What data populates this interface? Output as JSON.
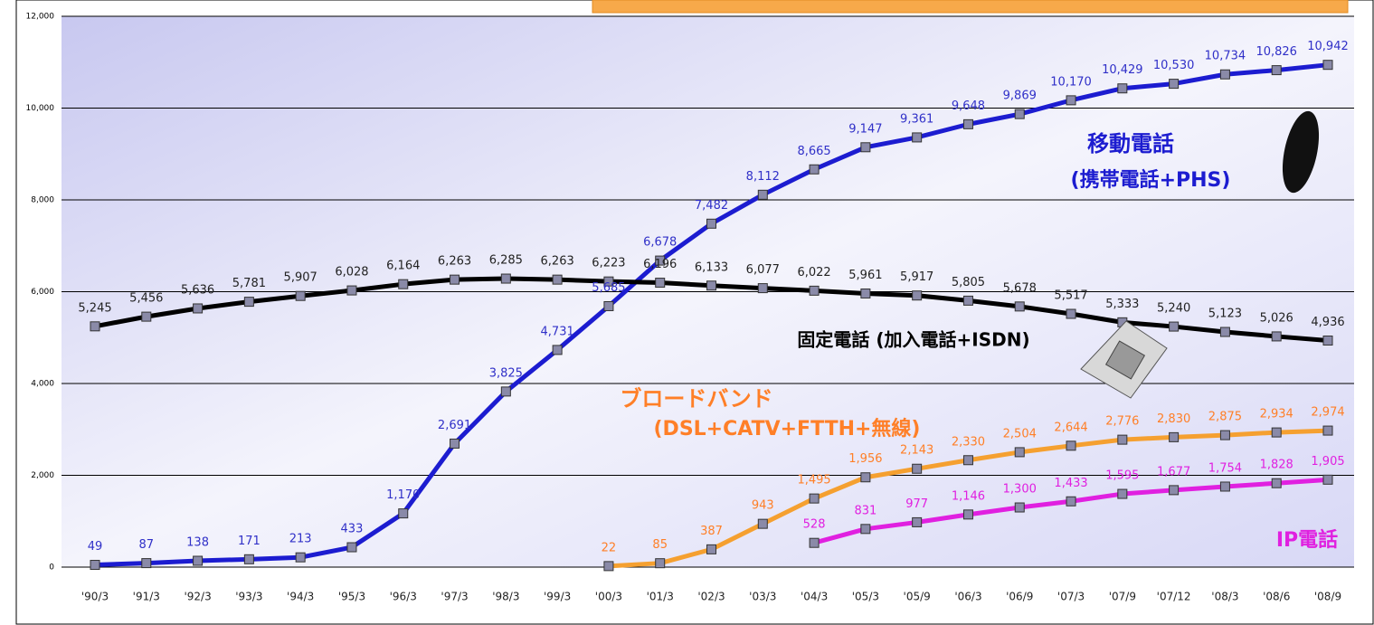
{
  "chart_data": {
    "type": "line",
    "categories": [
      "'90/3",
      "'91/3",
      "'92/3",
      "'93/3",
      "'94/3",
      "'95/3",
      "'96/3",
      "'97/3",
      "'98/3",
      "'99/3",
      "'00/3",
      "'01/3",
      "'02/3",
      "'03/3",
      "'04/3",
      "'05/3",
      "'05/9",
      "'06/3",
      "'06/9",
      "'07/3",
      "'07/9",
      "'07/12",
      "'08/3",
      "'08/6",
      "'08/9"
    ],
    "series": [
      {
        "name": "移動電話(携帯電話+PHS)",
        "color": "#1c1cd0",
        "label_color": "#3030c8",
        "values": [
          49,
          87,
          138,
          171,
          213,
          433,
          1170,
          2691,
          3825,
          4731,
          5685,
          6678,
          7482,
          8112,
          8665,
          9147,
          9361,
          9648,
          9869,
          10170,
          10429,
          10530,
          10734,
          10826,
          10942
        ],
        "value_labels": [
          "49",
          "87",
          "138",
          "171",
          "213",
          "433",
          "1,170",
          "2,691",
          "3,825",
          "4,731",
          "5,685",
          "6,678",
          "7,482",
          "8,112",
          "8,665",
          "9,147",
          "9,361",
          "9,648",
          "9,869",
          "10,170",
          "10,429",
          "10,530",
          "10,734",
          "10,826",
          "10,942"
        ]
      },
      {
        "name": "固定電話(加入電話+ISDN)",
        "color": "#000000",
        "label_color": "#222222",
        "values": [
          5245,
          5456,
          5636,
          5781,
          5907,
          6028,
          6164,
          6263,
          6285,
          6263,
          6223,
          6196,
          6133,
          6077,
          6022,
          5961,
          5917,
          5805,
          5678,
          5517,
          5333,
          5240,
          5123,
          5026,
          4936
        ],
        "value_labels": [
          "5,245",
          "5,456",
          "5,636",
          "5,781",
          "5,907",
          "6,028",
          "6,164",
          "6,263",
          "6,285",
          "6,263",
          "6,223",
          "6,196",
          "6,133",
          "6,077",
          "6,022",
          "5,961",
          "5,917",
          "5,805",
          "5,678",
          "5,517",
          "5,333",
          "5,240",
          "5,123",
          "5,026",
          "4,936"
        ]
      },
      {
        "name": "ブロードバンド(DSL+CATV+FTTH+無線)",
        "color": "#f5a030",
        "label_color": "#ff7f27",
        "values": [
          null,
          null,
          null,
          null,
          null,
          null,
          null,
          null,
          null,
          null,
          22,
          85,
          387,
          943,
          1495,
          1956,
          2143,
          2330,
          2504,
          2644,
          2776,
          2830,
          2875,
          2934,
          2974
        ],
        "value_labels": [
          null,
          null,
          null,
          null,
          null,
          null,
          null,
          null,
          null,
          null,
          "22",
          "85",
          "387",
          "943",
          "1,495",
          "1,956",
          "2,143",
          "2,330",
          "2,504",
          "2,644",
          "2,776",
          "2,830",
          "2,875",
          "2,934",
          "2,974"
        ]
      },
      {
        "name": "IP電話",
        "color": "#e020e0",
        "label_color": "#e020e0",
        "values": [
          null,
          null,
          null,
          null,
          null,
          null,
          null,
          null,
          null,
          null,
          null,
          null,
          null,
          null,
          528,
          831,
          977,
          1146,
          1300,
          1433,
          1595,
          1677,
          1754,
          1828,
          1905
        ],
        "value_labels": [
          null,
          null,
          null,
          null,
          null,
          null,
          null,
          null,
          null,
          null,
          null,
          null,
          null,
          null,
          "528",
          "831",
          "977",
          "1,146",
          "1,300",
          "1,433",
          "1,595",
          "1,677",
          "1,754",
          "1,828",
          "1,905"
        ]
      }
    ],
    "annotations": [
      "移動電話",
      "(携帯電話+PHS)",
      "固定電話 (加入電話+ISDN)",
      "ブロードバンド",
      "(DSL+CATV+FTTH+無線)",
      "IP電話"
    ],
    "ylim": [
      0,
      12000
    ],
    "yticks": [
      0,
      {
        "value": 2000,
        "label": "2,000"
      },
      {
        "value": 4000,
        "label": "4,000"
      },
      {
        "value": 6000,
        "label": "6,000"
      },
      {
        "value": 8000,
        "label": "8,000"
      },
      {
        "value": 10000,
        "label": "10,000"
      },
      {
        "value": 12000,
        "label": "12,000"
      }
    ],
    "grid": true
  }
}
